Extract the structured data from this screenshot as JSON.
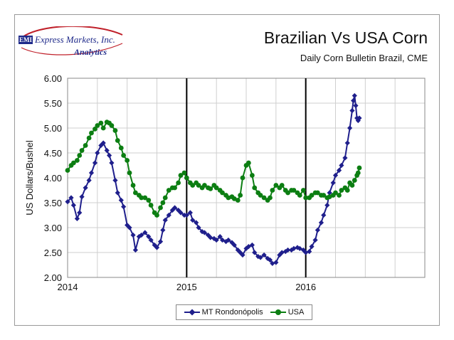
{
  "logo": {
    "emi": "EMI",
    "company": "Express Markets, Inc.",
    "sub": "Analytics"
  },
  "chart_data": {
    "type": "line",
    "title": "Brazilian Vs USA Corn",
    "subtitle": "Daily Corn Bulletin Brazil, CME",
    "xlabel": "",
    "ylabel": "US Dollars/Bushel",
    "xlim": [
      2014.0,
      2017.0
    ],
    "ylim": [
      2.0,
      6.0
    ],
    "x_ticks": [
      "2014",
      "2015",
      "2016"
    ],
    "x_tick_values": [
      2014,
      2015,
      2016
    ],
    "y_ticks": [
      "2.00",
      "2.50",
      "3.00",
      "3.50",
      "4.00",
      "4.50",
      "5.00",
      "5.50",
      "6.00"
    ],
    "vlines": [
      2015,
      2016
    ],
    "grid": true,
    "legend_position": "bottom",
    "series": [
      {
        "name": "MT Rondonópolis",
        "color": "#1f1f8c",
        "marker": "diamond",
        "points": [
          [
            2014.0,
            3.52
          ],
          [
            2014.03,
            3.6
          ],
          [
            2014.05,
            3.45
          ],
          [
            2014.08,
            3.18
          ],
          [
            2014.1,
            3.3
          ],
          [
            2014.12,
            3.62
          ],
          [
            2014.15,
            3.8
          ],
          [
            2014.18,
            3.95
          ],
          [
            2014.2,
            4.1
          ],
          [
            2014.23,
            4.3
          ],
          [
            2014.25,
            4.5
          ],
          [
            2014.28,
            4.65
          ],
          [
            2014.3,
            4.7
          ],
          [
            2014.33,
            4.55
          ],
          [
            2014.35,
            4.45
          ],
          [
            2014.37,
            4.3
          ],
          [
            2014.4,
            3.95
          ],
          [
            2014.42,
            3.7
          ],
          [
            2014.45,
            3.55
          ],
          [
            2014.47,
            3.42
          ],
          [
            2014.5,
            3.05
          ],
          [
            2014.52,
            3.0
          ],
          [
            2014.55,
            2.85
          ],
          [
            2014.57,
            2.55
          ],
          [
            2014.6,
            2.82
          ],
          [
            2014.62,
            2.85
          ],
          [
            2014.65,
            2.9
          ],
          [
            2014.68,
            2.82
          ],
          [
            2014.7,
            2.75
          ],
          [
            2014.73,
            2.65
          ],
          [
            2014.75,
            2.6
          ],
          [
            2014.78,
            2.72
          ],
          [
            2014.8,
            2.95
          ],
          [
            2014.82,
            3.15
          ],
          [
            2014.85,
            3.25
          ],
          [
            2014.88,
            3.35
          ],
          [
            2014.9,
            3.4
          ],
          [
            2014.93,
            3.35
          ],
          [
            2014.95,
            3.3
          ],
          [
            2014.98,
            3.25
          ],
          [
            2015.0,
            3.25
          ],
          [
            2015.03,
            3.3
          ],
          [
            2015.05,
            3.15
          ],
          [
            2015.08,
            3.1
          ],
          [
            2015.1,
            3.0
          ],
          [
            2015.13,
            2.92
          ],
          [
            2015.15,
            2.9
          ],
          [
            2015.18,
            2.85
          ],
          [
            2015.2,
            2.8
          ],
          [
            2015.23,
            2.78
          ],
          [
            2015.25,
            2.75
          ],
          [
            2015.28,
            2.82
          ],
          [
            2015.3,
            2.75
          ],
          [
            2015.33,
            2.72
          ],
          [
            2015.35,
            2.75
          ],
          [
            2015.38,
            2.7
          ],
          [
            2015.4,
            2.65
          ],
          [
            2015.43,
            2.55
          ],
          [
            2015.45,
            2.5
          ],
          [
            2015.47,
            2.45
          ],
          [
            2015.5,
            2.58
          ],
          [
            2015.52,
            2.62
          ],
          [
            2015.55,
            2.65
          ],
          [
            2015.57,
            2.5
          ],
          [
            2015.6,
            2.42
          ],
          [
            2015.62,
            2.4
          ],
          [
            2015.65,
            2.45
          ],
          [
            2015.68,
            2.38
          ],
          [
            2015.7,
            2.35
          ],
          [
            2015.72,
            2.28
          ],
          [
            2015.75,
            2.3
          ],
          [
            2015.78,
            2.45
          ],
          [
            2015.8,
            2.5
          ],
          [
            2015.83,
            2.52
          ],
          [
            2015.85,
            2.55
          ],
          [
            2015.88,
            2.55
          ],
          [
            2015.9,
            2.58
          ],
          [
            2015.93,
            2.6
          ],
          [
            2015.95,
            2.58
          ],
          [
            2015.98,
            2.55
          ],
          [
            2016.0,
            2.5
          ],
          [
            2016.03,
            2.52
          ],
          [
            2016.05,
            2.62
          ],
          [
            2016.08,
            2.75
          ],
          [
            2016.1,
            2.95
          ],
          [
            2016.13,
            3.1
          ],
          [
            2016.15,
            3.25
          ],
          [
            2016.18,
            3.45
          ],
          [
            2016.2,
            3.7
          ],
          [
            2016.23,
            3.9
          ],
          [
            2016.25,
            4.05
          ],
          [
            2016.28,
            4.15
          ],
          [
            2016.3,
            4.25
          ],
          [
            2016.33,
            4.4
          ],
          [
            2016.35,
            4.7
          ],
          [
            2016.37,
            5.0
          ],
          [
            2016.39,
            5.35
          ],
          [
            2016.4,
            5.55
          ],
          [
            2016.41,
            5.65
          ],
          [
            2016.42,
            5.45
          ],
          [
            2016.43,
            5.2
          ],
          [
            2016.44,
            5.15
          ],
          [
            2016.45,
            5.2
          ]
        ]
      },
      {
        "name": "USA",
        "color": "#0c7e12",
        "marker": "circle",
        "points": [
          [
            2014.0,
            4.15
          ],
          [
            2014.03,
            4.25
          ],
          [
            2014.05,
            4.3
          ],
          [
            2014.08,
            4.35
          ],
          [
            2014.1,
            4.45
          ],
          [
            2014.12,
            4.55
          ],
          [
            2014.15,
            4.65
          ],
          [
            2014.18,
            4.8
          ],
          [
            2014.2,
            4.9
          ],
          [
            2014.23,
            4.98
          ],
          [
            2014.25,
            5.05
          ],
          [
            2014.28,
            5.1
          ],
          [
            2014.3,
            5.0
          ],
          [
            2014.33,
            5.12
          ],
          [
            2014.35,
            5.1
          ],
          [
            2014.37,
            5.05
          ],
          [
            2014.4,
            4.95
          ],
          [
            2014.42,
            4.75
          ],
          [
            2014.45,
            4.6
          ],
          [
            2014.47,
            4.45
          ],
          [
            2014.5,
            4.35
          ],
          [
            2014.52,
            4.1
          ],
          [
            2014.55,
            3.85
          ],
          [
            2014.57,
            3.7
          ],
          [
            2014.6,
            3.65
          ],
          [
            2014.62,
            3.6
          ],
          [
            2014.65,
            3.6
          ],
          [
            2014.68,
            3.55
          ],
          [
            2014.7,
            3.45
          ],
          [
            2014.73,
            3.3
          ],
          [
            2014.75,
            3.25
          ],
          [
            2014.78,
            3.4
          ],
          [
            2014.8,
            3.5
          ],
          [
            2014.82,
            3.6
          ],
          [
            2014.85,
            3.75
          ],
          [
            2014.88,
            3.8
          ],
          [
            2014.9,
            3.8
          ],
          [
            2014.93,
            3.9
          ],
          [
            2014.95,
            4.05
          ],
          [
            2014.98,
            4.1
          ],
          [
            2015.0,
            4.0
          ],
          [
            2015.03,
            3.9
          ],
          [
            2015.05,
            3.85
          ],
          [
            2015.08,
            3.9
          ],
          [
            2015.1,
            3.85
          ],
          [
            2015.13,
            3.8
          ],
          [
            2015.15,
            3.85
          ],
          [
            2015.18,
            3.8
          ],
          [
            2015.2,
            3.78
          ],
          [
            2015.23,
            3.85
          ],
          [
            2015.25,
            3.8
          ],
          [
            2015.28,
            3.75
          ],
          [
            2015.3,
            3.7
          ],
          [
            2015.33,
            3.65
          ],
          [
            2015.35,
            3.6
          ],
          [
            2015.38,
            3.62
          ],
          [
            2015.4,
            3.58
          ],
          [
            2015.43,
            3.55
          ],
          [
            2015.45,
            3.65
          ],
          [
            2015.47,
            4.0
          ],
          [
            2015.5,
            4.25
          ],
          [
            2015.52,
            4.3
          ],
          [
            2015.55,
            4.05
          ],
          [
            2015.57,
            3.8
          ],
          [
            2015.6,
            3.7
          ],
          [
            2015.62,
            3.65
          ],
          [
            2015.65,
            3.6
          ],
          [
            2015.68,
            3.55
          ],
          [
            2015.7,
            3.6
          ],
          [
            2015.72,
            3.75
          ],
          [
            2015.75,
            3.85
          ],
          [
            2015.78,
            3.8
          ],
          [
            2015.8,
            3.85
          ],
          [
            2015.83,
            3.75
          ],
          [
            2015.85,
            3.7
          ],
          [
            2015.88,
            3.75
          ],
          [
            2015.9,
            3.75
          ],
          [
            2015.93,
            3.7
          ],
          [
            2015.95,
            3.65
          ],
          [
            2015.98,
            3.75
          ],
          [
            2016.0,
            3.6
          ],
          [
            2016.03,
            3.6
          ],
          [
            2016.05,
            3.65
          ],
          [
            2016.08,
            3.7
          ],
          [
            2016.1,
            3.7
          ],
          [
            2016.13,
            3.65
          ],
          [
            2016.15,
            3.65
          ],
          [
            2016.18,
            3.6
          ],
          [
            2016.2,
            3.62
          ],
          [
            2016.23,
            3.65
          ],
          [
            2016.25,
            3.7
          ],
          [
            2016.28,
            3.65
          ],
          [
            2016.3,
            3.75
          ],
          [
            2016.33,
            3.8
          ],
          [
            2016.35,
            3.75
          ],
          [
            2016.37,
            3.9
          ],
          [
            2016.39,
            3.85
          ],
          [
            2016.41,
            3.95
          ],
          [
            2016.43,
            4.05
          ],
          [
            2016.44,
            4.1
          ],
          [
            2016.45,
            4.2
          ]
        ]
      }
    ]
  }
}
